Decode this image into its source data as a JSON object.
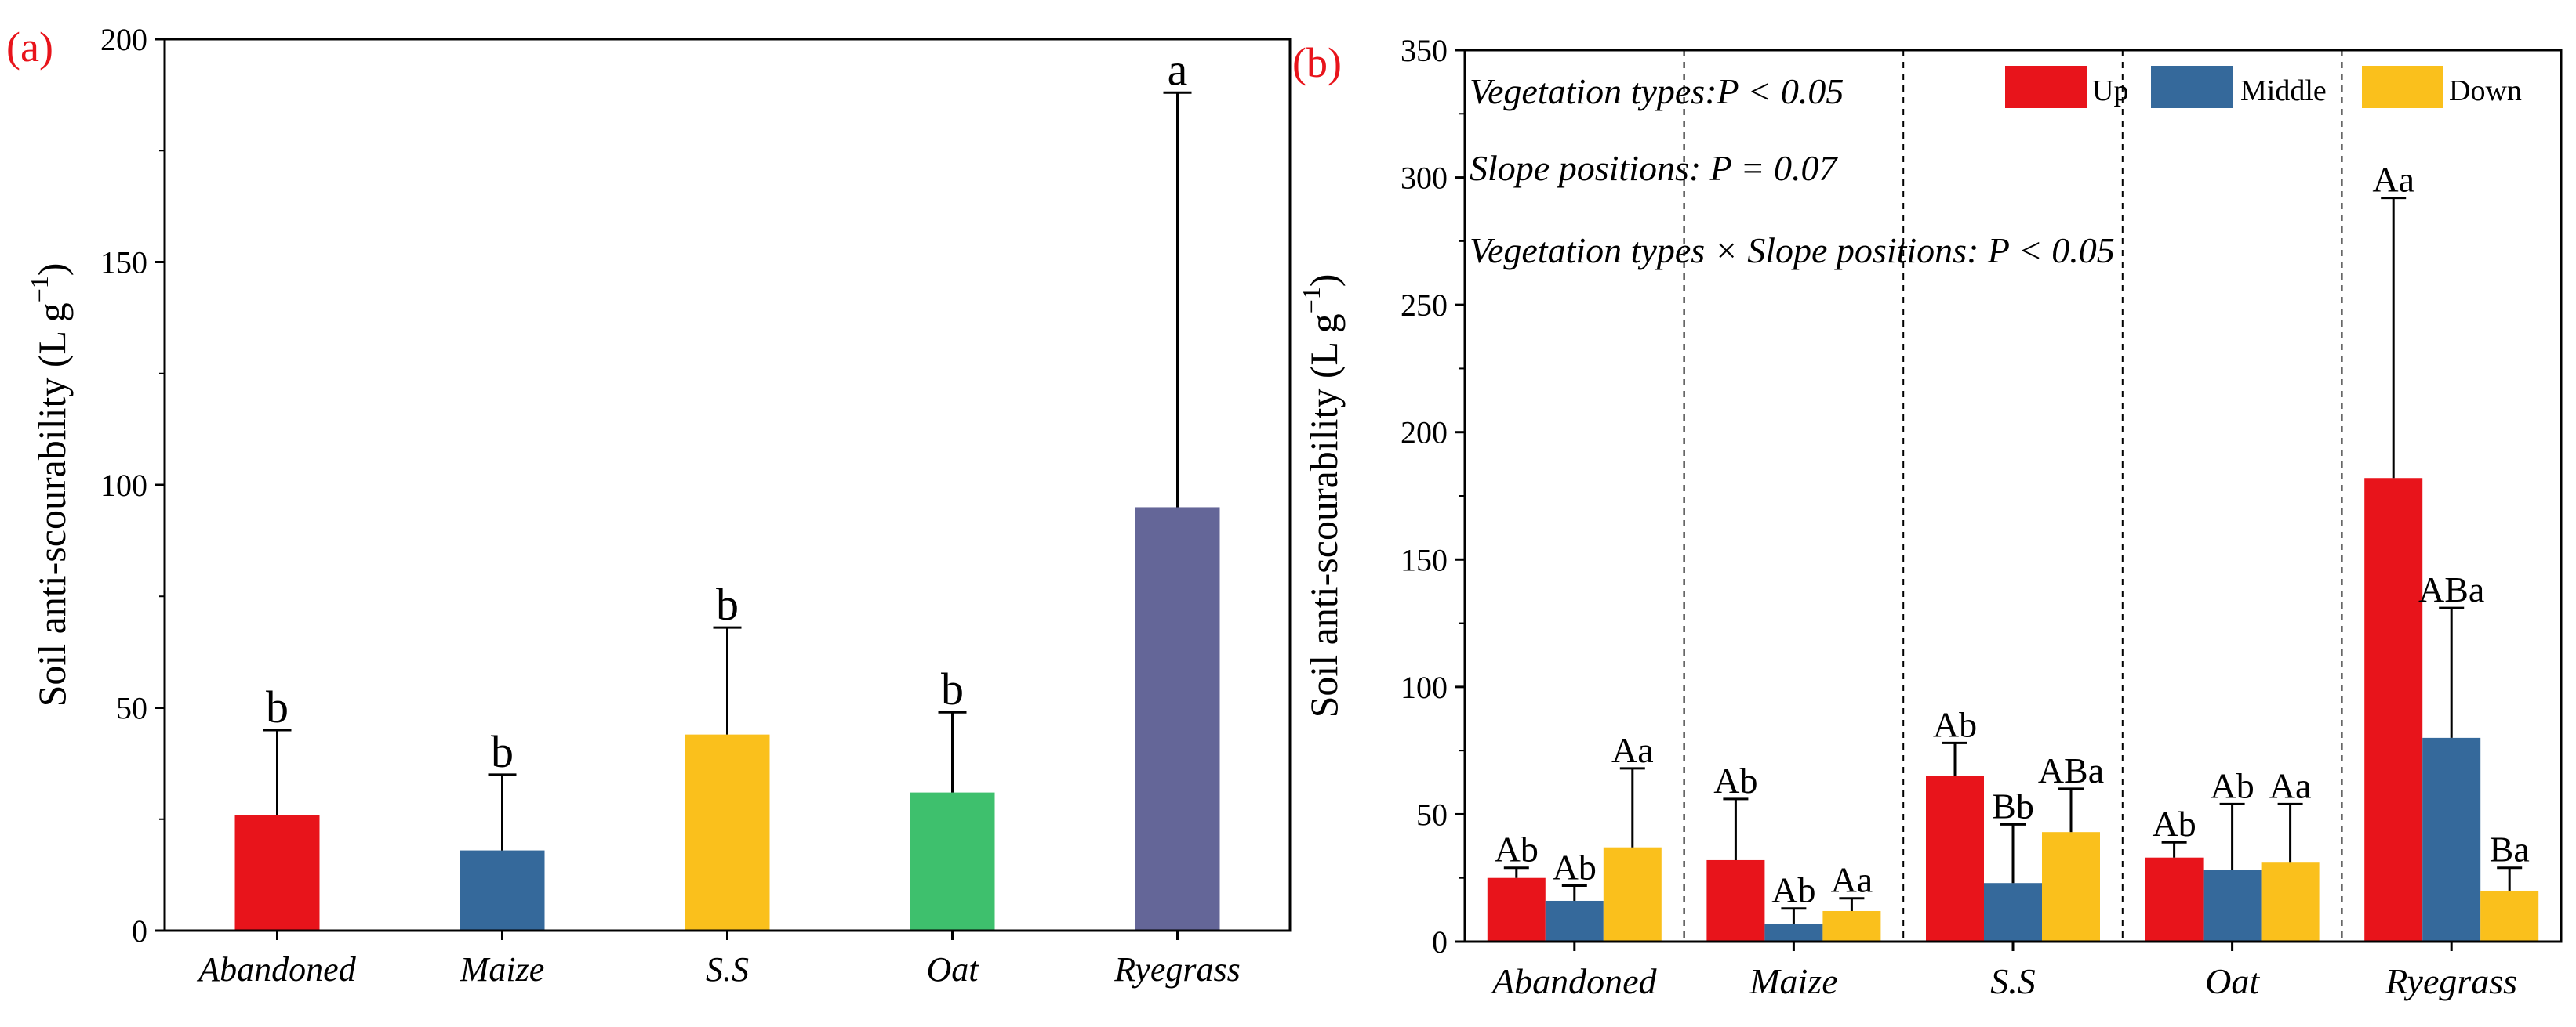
{
  "chart_data": [
    {
      "panel_label": "(a)",
      "type": "bar",
      "ylabel": "Soil anti-scourability (L g",
      "ylabel_sup": "−1",
      "ylabel_close": ")",
      "ylim": [
        0,
        200
      ],
      "yticks": [
        "0",
        "50",
        "100",
        "150",
        "200"
      ],
      "categories": [
        "Abandoned",
        "Maize",
        "S.S",
        "Oat",
        "Ryegrass"
      ],
      "values": [
        26,
        18,
        44,
        31,
        95
      ],
      "errors": [
        19,
        17,
        24,
        18,
        93
      ],
      "letters": [
        "b",
        "b",
        "b",
        "b",
        "a"
      ],
      "colors": [
        "#e8141b",
        "#35699b",
        "#fac01c",
        "#3ec06d",
        "#646698"
      ]
    },
    {
      "panel_label": "(b)",
      "type": "bar",
      "ylabel": "Soil anti-scourability (L g",
      "ylabel_sup": "−1",
      "ylabel_close": ")",
      "ylim": [
        0,
        350
      ],
      "yticks": [
        "0",
        "50",
        "100",
        "150",
        "200",
        "250",
        "300",
        "350"
      ],
      "categories": [
        "Abandoned",
        "Maize",
        "S.S",
        "Oat",
        "Ryegrass"
      ],
      "annotations": [
        "Vegetation types:P < 0.05",
        "Slope positions: P = 0.07",
        "Vegetation types × Slope positions: P < 0.05"
      ],
      "legend_position": "top-right",
      "series": [
        {
          "name": "Up",
          "color": "#e8141b",
          "values": [
            25,
            32,
            65,
            33,
            182
          ],
          "errors": [
            4,
            24,
            13,
            6,
            110
          ],
          "letters": [
            "Ab",
            "Ab",
            "Ab",
            "Ab",
            "Aa"
          ]
        },
        {
          "name": "Middle",
          "color": "#35699b",
          "values": [
            16,
            7,
            23,
            28,
            80
          ],
          "errors": [
            6,
            6,
            23,
            26,
            51
          ],
          "letters": [
            "Ab",
            "Ab",
            "Bb",
            "Ab",
            "ABa"
          ]
        },
        {
          "name": "Down",
          "color": "#fac01c",
          "values": [
            37,
            12,
            43,
            31,
            20
          ],
          "errors": [
            31,
            5,
            17,
            23,
            9
          ],
          "letters": [
            "Aa",
            "Aa",
            "ABa",
            "Aa",
            "Ba"
          ]
        }
      ]
    }
  ]
}
